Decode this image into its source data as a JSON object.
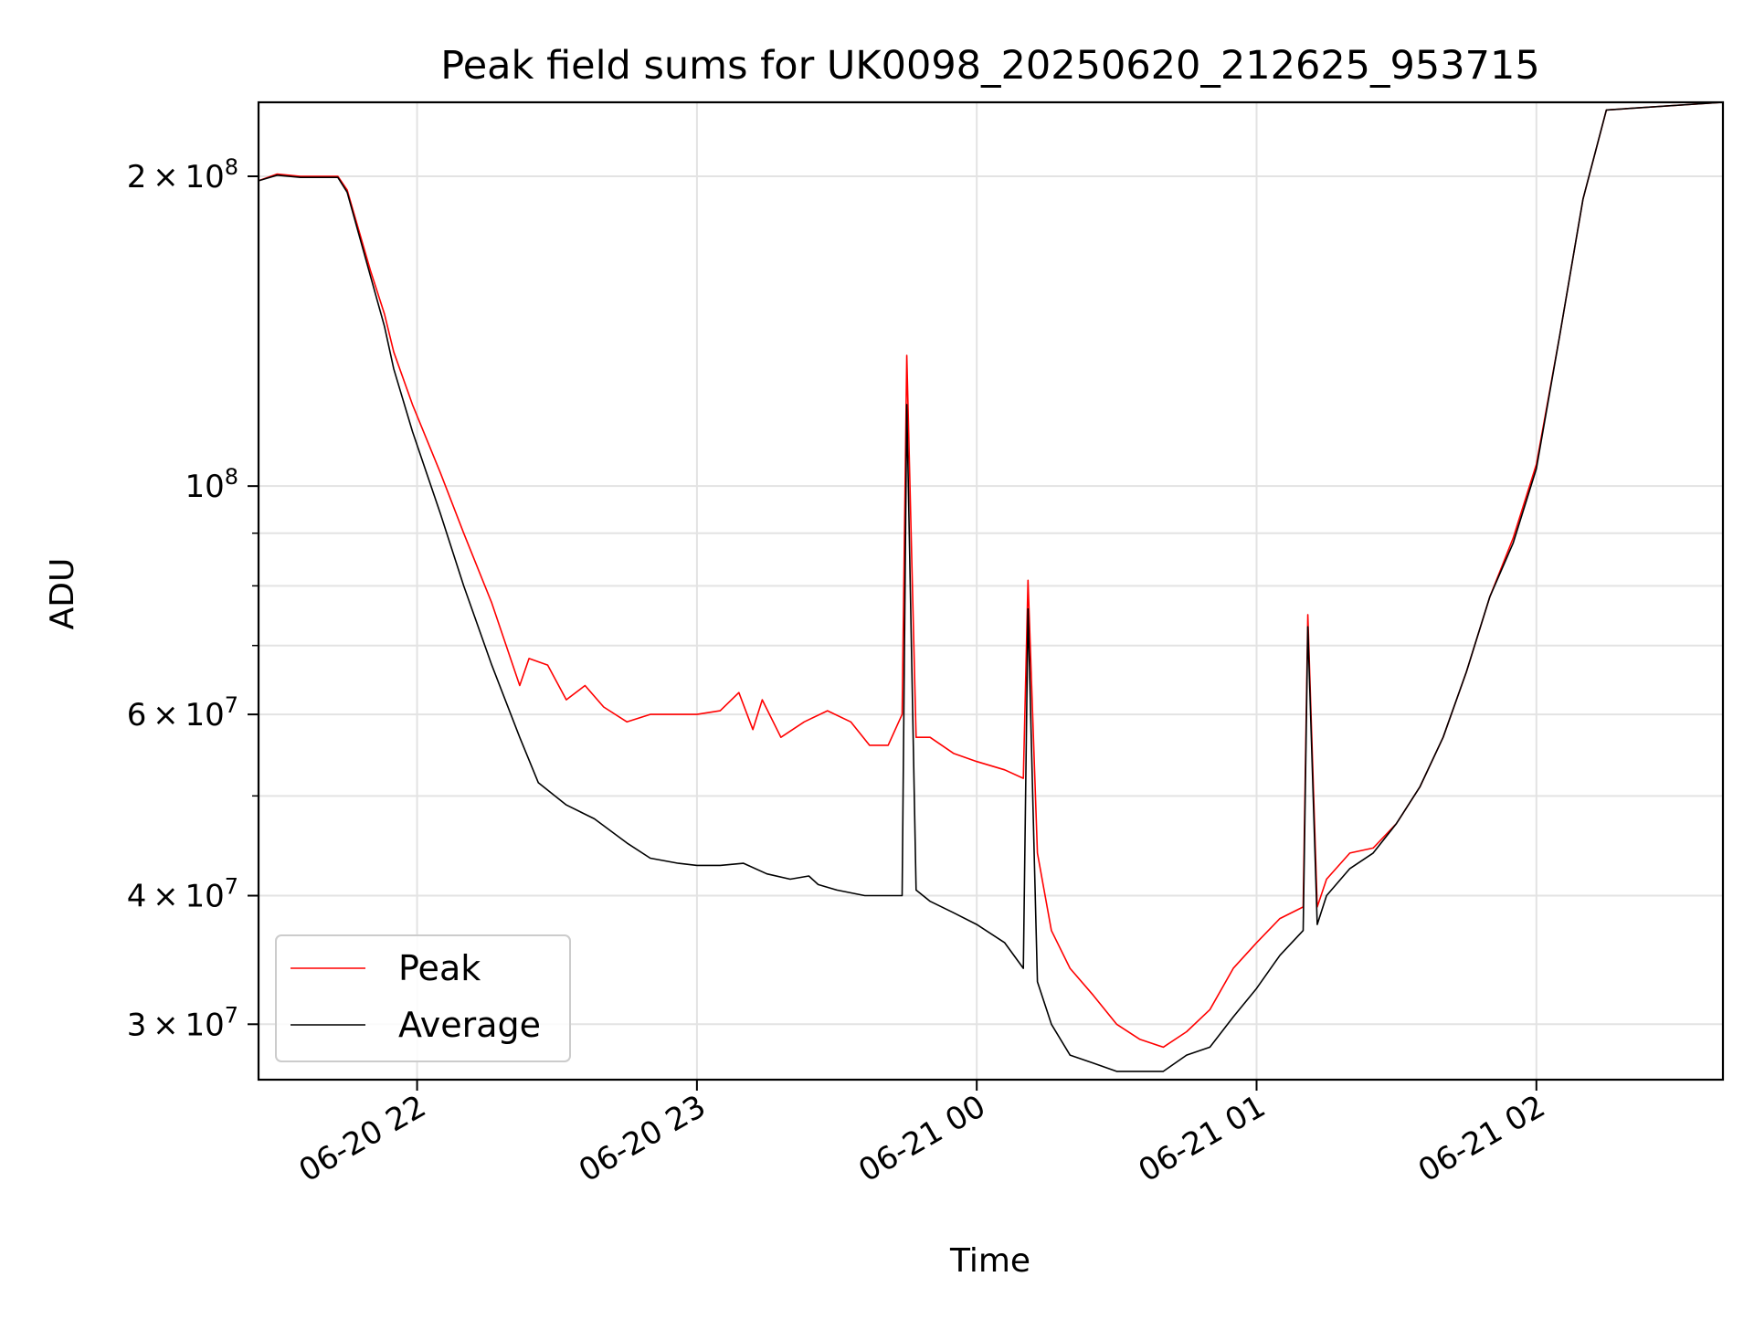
{
  "chart_data": {
    "type": "line",
    "title": "Peak field sums for UK0098_20250620_212625_953715",
    "xlabel": "Time",
    "ylabel": "ADU",
    "y_scale": "log",
    "xlim": [
      "2025-06-20 21:26",
      "2025-06-21 02:40"
    ],
    "ylim": [
      26500000,
      236000000
    ],
    "grid": true,
    "legend_position": "lower-left",
    "x_ticks": [
      {
        "t": "2025-06-20 22:00",
        "label": "06-20 22"
      },
      {
        "t": "2025-06-20 23:00",
        "label": "06-20 23"
      },
      {
        "t": "2025-06-21 00:00",
        "label": "06-21 00"
      },
      {
        "t": "2025-06-21 01:00",
        "label": "06-21 01"
      },
      {
        "t": "2025-06-21 02:00",
        "label": "06-21 02"
      }
    ],
    "y_ticks": [
      {
        "value": 30000000,
        "base": "3",
        "exp": "7"
      },
      {
        "value": 40000000,
        "base": "4",
        "exp": "7"
      },
      {
        "value": 60000000,
        "base": "6",
        "exp": "7"
      },
      {
        "value": 100000000,
        "base": "",
        "exp": "8"
      },
      {
        "value": 200000000,
        "base": "2",
        "exp": "8"
      }
    ],
    "y_minor_ticks": [
      50000000,
      70000000,
      80000000,
      90000000
    ],
    "series": [
      {
        "name": "Peak",
        "color": "#ff0000",
        "points": [
          [
            "2025-06-20 21:26",
            198000000
          ],
          [
            "2025-06-20 21:30",
            201000000
          ],
          [
            "2025-06-20 21:35",
            200000000
          ],
          [
            "2025-06-20 21:40",
            200000000
          ],
          [
            "2025-06-20 21:43",
            200000000
          ],
          [
            "2025-06-20 21:45",
            194000000
          ],
          [
            "2025-06-20 21:50",
            162000000
          ],
          [
            "2025-06-20 21:53",
            147000000
          ],
          [
            "2025-06-20 21:55",
            135000000
          ],
          [
            "2025-06-20 21:59",
            120000000
          ],
          [
            "2025-06-20 22:05",
            103000000
          ],
          [
            "2025-06-20 22:10",
            90000000
          ],
          [
            "2025-06-20 22:16",
            77000000
          ],
          [
            "2025-06-20 22:22",
            64000000
          ],
          [
            "2025-06-20 22:24",
            68000000
          ],
          [
            "2025-06-20 22:28",
            67000000
          ],
          [
            "2025-06-20 22:32",
            62000000
          ],
          [
            "2025-06-20 22:36",
            64000000
          ],
          [
            "2025-06-20 22:40",
            61000000
          ],
          [
            "2025-06-20 22:45",
            59000000
          ],
          [
            "2025-06-20 22:50",
            60000000
          ],
          [
            "2025-06-20 22:56",
            60000000
          ],
          [
            "2025-06-20 23:00",
            60000000
          ],
          [
            "2025-06-20 23:05",
            60500000
          ],
          [
            "2025-06-20 23:09",
            63000000
          ],
          [
            "2025-06-20 23:12",
            58000000
          ],
          [
            "2025-06-20 23:14",
            62000000
          ],
          [
            "2025-06-20 23:18",
            57000000
          ],
          [
            "2025-06-20 23:23",
            59000000
          ],
          [
            "2025-06-20 23:28",
            60500000
          ],
          [
            "2025-06-20 23:33",
            59000000
          ],
          [
            "2025-06-20 23:37",
            56000000
          ],
          [
            "2025-06-20 23:41",
            56000000
          ],
          [
            "2025-06-20 23:44",
            60000000
          ],
          [
            "2025-06-20 23:45",
            134000000
          ],
          [
            "2025-06-20 23:47",
            57000000
          ],
          [
            "2025-06-20 23:50",
            57000000
          ],
          [
            "2025-06-20 23:55",
            55000000
          ],
          [
            "2025-06-21 00:00",
            54000000
          ],
          [
            "2025-06-21 00:06",
            53000000
          ],
          [
            "2025-06-21 00:10",
            52000000
          ],
          [
            "2025-06-21 00:11",
            81000000
          ],
          [
            "2025-06-21 00:13",
            44000000
          ],
          [
            "2025-06-21 00:16",
            37000000
          ],
          [
            "2025-06-21 00:20",
            34000000
          ],
          [
            "2025-06-21 00:25",
            32000000
          ],
          [
            "2025-06-21 00:30",
            30000000
          ],
          [
            "2025-06-21 00:35",
            29000000
          ],
          [
            "2025-06-21 00:40",
            28500000
          ],
          [
            "2025-06-21 00:45",
            29500000
          ],
          [
            "2025-06-21 00:50",
            31000000
          ],
          [
            "2025-06-21 00:55",
            34000000
          ],
          [
            "2025-06-21 01:00",
            36000000
          ],
          [
            "2025-06-21 01:05",
            38000000
          ],
          [
            "2025-06-21 01:10",
            39000000
          ],
          [
            "2025-06-21 01:11",
            75000000
          ],
          [
            "2025-06-21 01:13",
            39000000
          ],
          [
            "2025-06-21 01:15",
            41500000
          ],
          [
            "2025-06-21 01:20",
            44000000
          ],
          [
            "2025-06-21 01:25",
            44500000
          ],
          [
            "2025-06-21 01:30",
            47000000
          ],
          [
            "2025-06-21 01:35",
            51000000
          ],
          [
            "2025-06-21 01:40",
            57000000
          ],
          [
            "2025-06-21 01:45",
            66000000
          ],
          [
            "2025-06-21 01:50",
            78000000
          ],
          [
            "2025-06-21 01:55",
            89000000
          ],
          [
            "2025-06-21 02:00",
            105000000
          ],
          [
            "2025-06-21 02:05",
            140000000
          ],
          [
            "2025-06-21 02:10",
            190000000
          ],
          [
            "2025-06-21 02:15",
            232000000
          ],
          [
            "2025-06-21 02:40",
            236000000
          ]
        ]
      },
      {
        "name": "Average",
        "color": "#000000",
        "points": [
          [
            "2025-06-20 21:26",
            198000000
          ],
          [
            "2025-06-20 21:30",
            200500000
          ],
          [
            "2025-06-20 21:35",
            199500000
          ],
          [
            "2025-06-20 21:40",
            199500000
          ],
          [
            "2025-06-20 21:43",
            199500000
          ],
          [
            "2025-06-20 21:45",
            193000000
          ],
          [
            "2025-06-20 21:50",
            160000000
          ],
          [
            "2025-06-20 21:53",
            143000000
          ],
          [
            "2025-06-20 21:55",
            130000000
          ],
          [
            "2025-06-20 21:59",
            113000000
          ],
          [
            "2025-06-20 22:05",
            94000000
          ],
          [
            "2025-06-20 22:10",
            80000000
          ],
          [
            "2025-06-20 22:16",
            67000000
          ],
          [
            "2025-06-20 22:22",
            57000000
          ],
          [
            "2025-06-20 22:26",
            51500000
          ],
          [
            "2025-06-20 22:32",
            49000000
          ],
          [
            "2025-06-20 22:38",
            47500000
          ],
          [
            "2025-06-20 22:45",
            45000000
          ],
          [
            "2025-06-20 22:50",
            43500000
          ],
          [
            "2025-06-20 22:56",
            43000000
          ],
          [
            "2025-06-20 23:00",
            42800000
          ],
          [
            "2025-06-20 23:05",
            42800000
          ],
          [
            "2025-06-20 23:10",
            43000000
          ],
          [
            "2025-06-20 23:15",
            42000000
          ],
          [
            "2025-06-20 23:20",
            41500000
          ],
          [
            "2025-06-20 23:24",
            41800000
          ],
          [
            "2025-06-20 23:26",
            41000000
          ],
          [
            "2025-06-20 23:30",
            40500000
          ],
          [
            "2025-06-20 23:36",
            40000000
          ],
          [
            "2025-06-20 23:44",
            40000000
          ],
          [
            "2025-06-20 23:45",
            120000000
          ],
          [
            "2025-06-20 23:47",
            40500000
          ],
          [
            "2025-06-20 23:50",
            39500000
          ],
          [
            "2025-06-20 23:55",
            38500000
          ],
          [
            "2025-06-21 00:00",
            37500000
          ],
          [
            "2025-06-21 00:06",
            36000000
          ],
          [
            "2025-06-21 00:10",
            34000000
          ],
          [
            "2025-06-21 00:11",
            76000000
          ],
          [
            "2025-06-21 00:13",
            33000000
          ],
          [
            "2025-06-21 00:16",
            30000000
          ],
          [
            "2025-06-21 00:20",
            28000000
          ],
          [
            "2025-06-21 00:25",
            27500000
          ],
          [
            "2025-06-21 00:30",
            27000000
          ],
          [
            "2025-06-21 00:35",
            27000000
          ],
          [
            "2025-06-21 00:40",
            27000000
          ],
          [
            "2025-06-21 00:45",
            28000000
          ],
          [
            "2025-06-21 00:50",
            28500000
          ],
          [
            "2025-06-21 00:55",
            30500000
          ],
          [
            "2025-06-21 01:00",
            32500000
          ],
          [
            "2025-06-21 01:05",
            35000000
          ],
          [
            "2025-06-21 01:10",
            37000000
          ],
          [
            "2025-06-21 01:11",
            73000000
          ],
          [
            "2025-06-21 01:13",
            37500000
          ],
          [
            "2025-06-21 01:15",
            40000000
          ],
          [
            "2025-06-21 01:20",
            42500000
          ],
          [
            "2025-06-21 01:25",
            44000000
          ],
          [
            "2025-06-21 01:30",
            47000000
          ],
          [
            "2025-06-21 01:35",
            51000000
          ],
          [
            "2025-06-21 01:40",
            57000000
          ],
          [
            "2025-06-21 01:45",
            66000000
          ],
          [
            "2025-06-21 01:50",
            78000000
          ],
          [
            "2025-06-21 01:55",
            88000000
          ],
          [
            "2025-06-21 02:00",
            104000000
          ],
          [
            "2025-06-21 02:05",
            140000000
          ],
          [
            "2025-06-21 02:10",
            190000000
          ],
          [
            "2025-06-21 02:15",
            232000000
          ],
          [
            "2025-06-21 02:40",
            236000000
          ]
        ]
      }
    ]
  }
}
